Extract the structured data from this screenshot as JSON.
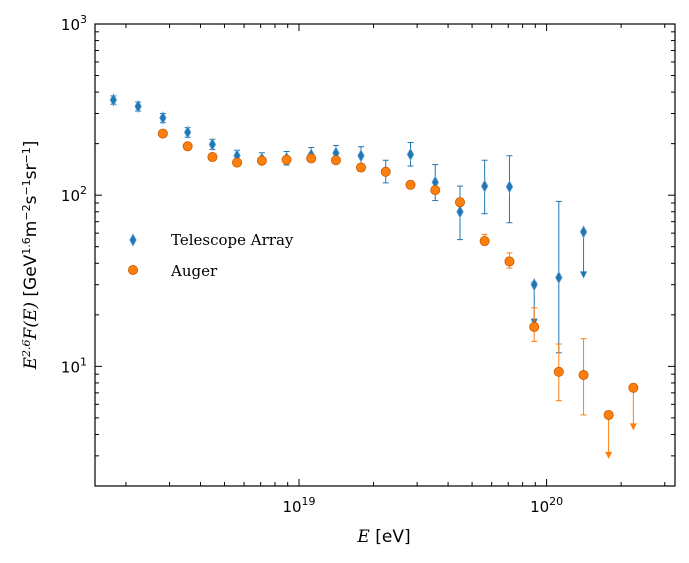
{
  "chart_data": {
    "type": "scatter",
    "xscale": "log",
    "yscale": "log",
    "xlim": [
      1.5e+18,
      3.3e+20
    ],
    "ylim": [
      2.0,
      1000
    ],
    "xlabel": {
      "math": "E",
      "unit": " [eV]"
    },
    "ylabel": {
      "math": "E^2.6F(E)",
      "unit": " [GeV^1.6 m^-2 s^-1 sr^-1]"
    },
    "x_ticks": [
      {
        "value": 1e+19,
        "base": "10",
        "exp": "19"
      },
      {
        "value": 1e+20,
        "base": "10",
        "exp": "20"
      }
    ],
    "y_ticks": [
      {
        "value": 10,
        "base": "10",
        "exp": "1"
      },
      {
        "value": 100,
        "base": "10",
        "exp": "2"
      },
      {
        "value": 1000,
        "base": "10",
        "exp": "3"
      }
    ],
    "legend_position": "center-left",
    "series": [
      {
        "name": "Telescope Array",
        "marker": "thin_diamond",
        "color": "#1f77b4",
        "points": [
          {
            "x": 1.78e+18,
            "y": 360,
            "lo": 340,
            "hi": 380
          },
          {
            "x": 2.24e+18,
            "y": 330,
            "lo": 310,
            "hi": 350
          },
          {
            "x": 2.82e+18,
            "y": 283,
            "lo": 265,
            "hi": 300
          },
          {
            "x": 3.55e+18,
            "y": 233,
            "lo": 218,
            "hi": 248
          },
          {
            "x": 4.47e+18,
            "y": 198,
            "lo": 185,
            "hi": 212
          },
          {
            "x": 5.62e+18,
            "y": 170,
            "lo": 158,
            "hi": 183
          },
          {
            "x": 7.08e+18,
            "y": 163,
            "lo": 152,
            "hi": 177
          },
          {
            "x": 8.91e+18,
            "y": 164,
            "lo": 150,
            "hi": 180
          },
          {
            "x": 1.12e+19,
            "y": 172,
            "lo": 157,
            "hi": 190
          },
          {
            "x": 1.41e+19,
            "y": 176,
            "lo": 158,
            "hi": 195
          },
          {
            "x": 1.78e+19,
            "y": 170,
            "lo": 150,
            "hi": 192
          },
          {
            "x": 2.24e+19,
            "y": 137,
            "lo": 118,
            "hi": 160
          },
          {
            "x": 2.82e+19,
            "y": 173,
            "lo": 148,
            "hi": 203
          },
          {
            "x": 3.55e+19,
            "y": 119,
            "lo": 93,
            "hi": 151
          },
          {
            "x": 4.47e+19,
            "y": 80,
            "lo": 55,
            "hi": 113
          },
          {
            "x": 5.62e+19,
            "y": 113,
            "lo": 78,
            "hi": 160
          },
          {
            "x": 7.08e+19,
            "y": 112,
            "lo": 69,
            "hi": 170
          },
          {
            "x": 8.91e+19,
            "y": 30,
            "lo": 19,
            "hi": 31,
            "upper_limit": true,
            "arrow_y": 18
          },
          {
            "x": 1.12e+20,
            "y": 33,
            "lo": 12,
            "hi": 92
          },
          {
            "x": 1.41e+20,
            "y": 61,
            "lo": 35,
            "hi": 62,
            "upper_limit": true,
            "arrow_y": 34
          }
        ]
      },
      {
        "name": "Auger",
        "marker": "circle",
        "color": "#ff7f0e",
        "points": [
          {
            "x": 2.82e+18,
            "y": 229,
            "lo": 229,
            "hi": 229
          },
          {
            "x": 3.55e+18,
            "y": 193,
            "lo": 193,
            "hi": 193
          },
          {
            "x": 4.47e+18,
            "y": 167,
            "lo": 167,
            "hi": 167
          },
          {
            "x": 5.62e+18,
            "y": 155,
            "lo": 155,
            "hi": 155
          },
          {
            "x": 7.08e+18,
            "y": 159,
            "lo": 159,
            "hi": 159
          },
          {
            "x": 8.91e+18,
            "y": 161,
            "lo": 161,
            "hi": 161
          },
          {
            "x": 1.12e+19,
            "y": 164,
            "lo": 164,
            "hi": 164
          },
          {
            "x": 1.41e+19,
            "y": 160,
            "lo": 160,
            "hi": 160
          },
          {
            "x": 1.78e+19,
            "y": 145,
            "lo": 145,
            "hi": 145
          },
          {
            "x": 2.24e+19,
            "y": 137,
            "lo": 134,
            "hi": 140
          },
          {
            "x": 2.82e+19,
            "y": 115,
            "lo": 112,
            "hi": 118
          },
          {
            "x": 3.55e+19,
            "y": 107,
            "lo": 103,
            "hi": 111
          },
          {
            "x": 4.47e+19,
            "y": 91,
            "lo": 87,
            "hi": 96
          },
          {
            "x": 5.62e+19,
            "y": 54,
            "lo": 51,
            "hi": 59
          },
          {
            "x": 7.08e+19,
            "y": 41,
            "lo": 37.5,
            "hi": 46
          },
          {
            "x": 8.91e+19,
            "y": 17,
            "lo": 14,
            "hi": 22
          },
          {
            "x": 1.12e+20,
            "y": 9.3,
            "lo": 6.3,
            "hi": 13.5
          },
          {
            "x": 1.41e+20,
            "y": 8.9,
            "lo": 5.2,
            "hi": 14.5
          },
          {
            "x": 1.78e+20,
            "y": 5.2,
            "lo": 3.2,
            "hi": 5.3,
            "upper_limit": true,
            "arrow_y": 3.0
          },
          {
            "x": 2.24e+20,
            "y": 7.5,
            "lo": 4.6,
            "hi": 7.6,
            "upper_limit": true,
            "arrow_y": 4.4
          }
        ]
      }
    ]
  }
}
